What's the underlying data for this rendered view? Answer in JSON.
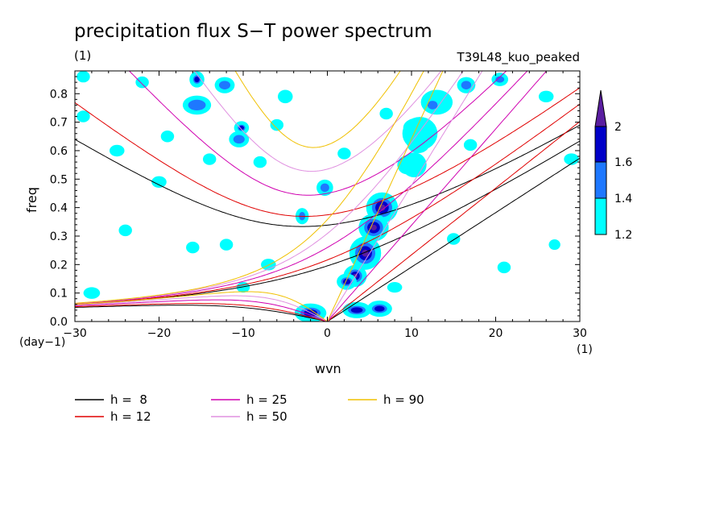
{
  "header": {
    "title": "precipitation flux S−T power spectrum",
    "units_label": "(1)",
    "run_label": "T39L48_kuo_peaked"
  },
  "chart_data": {
    "type": "heatmap",
    "title": "precipitation flux S−T power spectrum",
    "xlabel": "wvn",
    "ylabel": "freq",
    "x_unit_label": "(1)",
    "y_unit_label": "(day−1)",
    "xlim": [
      -30,
      30
    ],
    "ylim": [
      0,
      0.88
    ],
    "x_ticks": [
      -30,
      -20,
      -10,
      0,
      10,
      20,
      30
    ],
    "x_tick_labels": [
      "−30",
      "−20",
      "−10",
      "0",
      "10",
      "20",
      "30"
    ],
    "y_ticks": [
      0,
      0.1,
      0.2,
      0.3,
      0.4,
      0.5,
      0.6,
      0.7,
      0.8
    ],
    "y_tick_labels": [
      "0.0",
      "0.1",
      "0.2",
      "0.3",
      "0.4",
      "0.5",
      "0.6",
      "0.7",
      "0.8"
    ],
    "colorbar": {
      "levels": [
        1.2,
        1.4,
        1.6,
        2
      ],
      "level_labels": [
        "1.2",
        "1.4",
        "1.6",
        "2"
      ],
      "colors": [
        "#00ffff",
        "#1e78ff",
        "#0000c8",
        "#5a1ea0"
      ]
    },
    "dispersion_curves": [
      {
        "name": "h =  8",
        "h": 8,
        "color": "#000000"
      },
      {
        "name": "h = 12",
        "h": 12,
        "color": "#e00000"
      },
      {
        "name": "h = 25",
        "h": 25,
        "color": "#d000b0"
      },
      {
        "name": "h = 50",
        "h": 50,
        "color": "#e090e0"
      },
      {
        "name": "h = 90",
        "h": 90,
        "color": "#f0c000"
      }
    ],
    "blobs": [
      {
        "x": 6.5,
        "y": 0.4,
        "rx": 1.6,
        "ry": 0.045,
        "level": 3
      },
      {
        "x": 5.5,
        "y": 0.33,
        "rx": 1.5,
        "ry": 0.04,
        "level": 3
      },
      {
        "x": 4.5,
        "y": 0.24,
        "rx": 1.6,
        "ry": 0.05,
        "level": 3
      },
      {
        "x": 3.3,
        "y": 0.16,
        "rx": 1.1,
        "ry": 0.03,
        "level": 3
      },
      {
        "x": 2.3,
        "y": 0.14,
        "rx": 0.9,
        "ry": 0.02,
        "level": 2
      },
      {
        "x": 3.5,
        "y": 0.04,
        "rx": 1.4,
        "ry": 0.02,
        "level": 2
      },
      {
        "x": 6.2,
        "y": 0.045,
        "rx": 1.2,
        "ry": 0.02,
        "level": 2
      },
      {
        "x": -2,
        "y": 0.03,
        "rx": 1.6,
        "ry": 0.025,
        "level": 2
      },
      {
        "x": 10.5,
        "y": 0.68,
        "rx": 1.2,
        "ry": 0.025,
        "level": 2
      },
      {
        "x": 10.8,
        "y": 0.62,
        "rx": 1.0,
        "ry": 0.02,
        "level": 2
      },
      {
        "x": 9.5,
        "y": 0.55,
        "rx": 0.9,
        "ry": 0.025,
        "level": 2
      },
      {
        "x": 10.3,
        "y": 0.55,
        "rx": 1.2,
        "ry": 0.035,
        "level": 0
      },
      {
        "x": 13,
        "y": 0.77,
        "rx": 1.6,
        "ry": 0.035,
        "level": 0
      },
      {
        "x": 12.5,
        "y": 0.76,
        "rx": 0.8,
        "ry": 0.02,
        "level": 1
      },
      {
        "x": 11,
        "y": 0.66,
        "rx": 1.8,
        "ry": 0.05,
        "level": 0
      },
      {
        "x": -0.3,
        "y": 0.47,
        "rx": 0.7,
        "ry": 0.02,
        "level": 1
      },
      {
        "x": -15.5,
        "y": 0.85,
        "rx": 0.6,
        "ry": 0.02,
        "level": 2
      },
      {
        "x": -15.5,
        "y": 0.76,
        "rx": 1.4,
        "ry": 0.025,
        "level": 1
      },
      {
        "x": -12.2,
        "y": 0.83,
        "rx": 0.9,
        "ry": 0.02,
        "level": 1
      },
      {
        "x": -10.5,
        "y": 0.64,
        "rx": 0.9,
        "ry": 0.02,
        "level": 1
      },
      {
        "x": -10.2,
        "y": 0.68,
        "rx": 0.6,
        "ry": 0.015,
        "level": 2
      },
      {
        "x": 16.5,
        "y": 0.83,
        "rx": 0.8,
        "ry": 0.02,
        "level": 1
      },
      {
        "x": 20.5,
        "y": 0.85,
        "rx": 0.7,
        "ry": 0.015,
        "level": 1
      },
      {
        "x": -3,
        "y": 0.37,
        "rx": 0.5,
        "ry": 0.02,
        "level": 1
      },
      {
        "x": -29,
        "y": 0.72,
        "rx": 0.5,
        "ry": 0.012,
        "level": 0
      },
      {
        "x": -25,
        "y": 0.6,
        "rx": 0.6,
        "ry": 0.012,
        "level": 0
      },
      {
        "x": -19,
        "y": 0.65,
        "rx": 0.5,
        "ry": 0.012,
        "level": 0
      },
      {
        "x": -20,
        "y": 0.49,
        "rx": 0.6,
        "ry": 0.012,
        "level": 0
      },
      {
        "x": -24,
        "y": 0.32,
        "rx": 0.5,
        "ry": 0.012,
        "level": 0
      },
      {
        "x": -16,
        "y": 0.26,
        "rx": 0.5,
        "ry": 0.012,
        "level": 0
      },
      {
        "x": -7,
        "y": 0.2,
        "rx": 0.6,
        "ry": 0.012,
        "level": 0
      },
      {
        "x": -12,
        "y": 0.27,
        "rx": 0.5,
        "ry": 0.012,
        "level": 0
      },
      {
        "x": -28,
        "y": 0.1,
        "rx": 0.7,
        "ry": 0.012,
        "level": 0
      },
      {
        "x": 21,
        "y": 0.19,
        "rx": 0.5,
        "ry": 0.012,
        "level": 0
      },
      {
        "x": 15,
        "y": 0.29,
        "rx": 0.5,
        "ry": 0.012,
        "level": 0
      },
      {
        "x": 26,
        "y": 0.79,
        "rx": 0.6,
        "ry": 0.012,
        "level": 0
      },
      {
        "x": 29,
        "y": 0.57,
        "rx": 0.6,
        "ry": 0.012,
        "level": 0
      },
      {
        "x": 17,
        "y": 0.62,
        "rx": 0.5,
        "ry": 0.012,
        "level": 0
      },
      {
        "x": -22,
        "y": 0.84,
        "rx": 0.5,
        "ry": 0.012,
        "level": 0
      },
      {
        "x": -29,
        "y": 0.86,
        "rx": 0.5,
        "ry": 0.012,
        "level": 0
      },
      {
        "x": -5,
        "y": 0.79,
        "rx": 0.6,
        "ry": 0.015,
        "level": 0
      },
      {
        "x": -6,
        "y": 0.69,
        "rx": 0.5,
        "ry": 0.012,
        "level": 0
      },
      {
        "x": -8,
        "y": 0.56,
        "rx": 0.5,
        "ry": 0.012,
        "level": 0
      },
      {
        "x": 2,
        "y": 0.59,
        "rx": 0.5,
        "ry": 0.012,
        "level": 0
      },
      {
        "x": 7,
        "y": 0.73,
        "rx": 0.5,
        "ry": 0.012,
        "level": 0
      },
      {
        "x": -14,
        "y": 0.57,
        "rx": 0.5,
        "ry": 0.012,
        "level": 0
      },
      {
        "x": -10,
        "y": 0.12,
        "rx": 0.5,
        "ry": 0.01,
        "level": 0
      },
      {
        "x": 8,
        "y": 0.12,
        "rx": 0.6,
        "ry": 0.01,
        "level": 0
      },
      {
        "x": 27,
        "y": 0.27,
        "rx": 0.4,
        "ry": 0.01,
        "level": 0
      }
    ]
  },
  "legend": {
    "entries": [
      {
        "label": "h =  8",
        "color": "#000000"
      },
      {
        "label": "h = 12",
        "color": "#e00000"
      },
      {
        "label": "h = 25",
        "color": "#d000b0"
      },
      {
        "label": "h = 50",
        "color": "#e090e0"
      },
      {
        "label": "h = 90",
        "color": "#f0c000"
      }
    ]
  }
}
